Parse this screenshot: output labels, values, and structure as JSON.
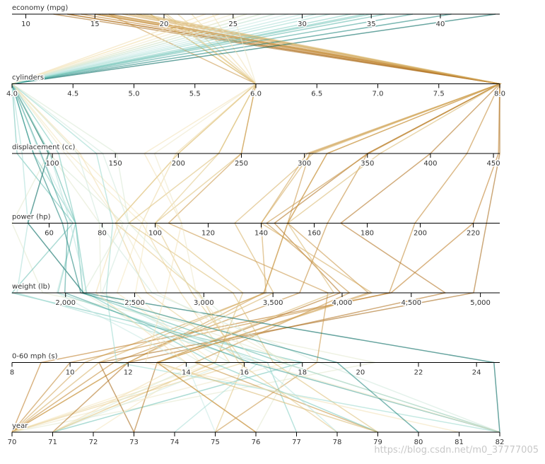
{
  "chart_data": {
    "type": "parallel",
    "colormap": [
      "#8c510a",
      "#bf812d",
      "#dfc27d",
      "#f6e8c3",
      "#c7eae5",
      "#80cdc1",
      "#35978f",
      "#01665e"
    ],
    "color_by": 0,
    "dimensions": [
      {
        "name": "economy (mpg)",
        "lim": [
          9,
          44.3
        ],
        "ticks": [
          10,
          15,
          20,
          25,
          30,
          35,
          40
        ]
      },
      {
        "name": "cylinders",
        "lim": [
          4,
          8
        ],
        "ticks": [
          {
            "value": 4,
            "label": "4.0"
          },
          4.5,
          {
            "value": 5,
            "label": "5.0"
          },
          5.5,
          {
            "value": 6,
            "label": "6.0"
          },
          6.5,
          {
            "value": 7,
            "label": "7.0"
          },
          7.5,
          {
            "value": 8,
            "label": "8.0"
          }
        ]
      },
      {
        "name": "displacement (cc)",
        "lim": [
          68,
          455
        ],
        "ticks": [
          100,
          150,
          200,
          250,
          300,
          350,
          400,
          450
        ]
      },
      {
        "name": "power (hp)",
        "lim": [
          46,
          230
        ],
        "ticks": [
          60,
          80,
          100,
          120,
          140,
          160,
          180,
          200,
          220
        ]
      },
      {
        "name": "weight (lb)",
        "lim": [
          1613,
          5140
        ],
        "ticks": [
          {
            "value": 2000,
            "label": "2,000"
          },
          {
            "value": 2500,
            "label": "2,500"
          },
          {
            "value": 3000,
            "label": "3,000"
          },
          {
            "value": 3500,
            "label": "3,500"
          },
          {
            "value": 4000,
            "label": "4,000"
          },
          {
            "value": 4500,
            "label": "4,500"
          },
          {
            "value": 5000,
            "label": "5,000"
          }
        ]
      },
      {
        "name": "0-60 mph (s)",
        "lim": [
          8,
          24.8
        ],
        "ticks": [
          8,
          10,
          12,
          14,
          16,
          18,
          20,
          22,
          24
        ]
      },
      {
        "name": "year",
        "lim": [
          70,
          82
        ],
        "ticks": [
          70,
          71,
          72,
          73,
          74,
          75,
          76,
          77,
          78,
          79,
          80,
          81,
          82
        ]
      }
    ],
    "data": [
      [
        18,
        8,
        307,
        130,
        3504,
        12,
        70
      ],
      [
        15,
        8,
        350,
        165,
        3693,
        11.5,
        70
      ],
      [
        18,
        8,
        318,
        150,
        3436,
        11,
        70
      ],
      [
        16,
        8,
        304,
        150,
        3433,
        12,
        70
      ],
      [
        17,
        8,
        302,
        140,
        3449,
        10.5,
        70
      ],
      [
        15,
        8,
        429,
        198,
        4341,
        10,
        70
      ],
      [
        14,
        8,
        454,
        220,
        4354,
        9,
        70
      ],
      [
        24,
        4,
        113,
        95,
        2372,
        15,
        70
      ],
      [
        22,
        6,
        198,
        95,
        2833,
        15.5,
        70
      ],
      [
        26,
        4,
        97,
        46,
        1835,
        20.5,
        70
      ],
      [
        25,
        4,
        110,
        87,
        2672,
        17.5,
        70
      ],
      [
        21,
        6,
        200,
        85,
        2587,
        16,
        70
      ],
      [
        27,
        4,
        97,
        88,
        2130,
        14.5,
        71
      ],
      [
        28,
        4,
        140,
        90,
        2264,
        15.5,
        71
      ],
      [
        19,
        6,
        250,
        100,
        3282,
        15,
        71
      ],
      [
        13,
        8,
        400,
        170,
        4746,
        12,
        71
      ],
      [
        12,
        8,
        455,
        225,
        4951,
        11,
        73
      ],
      [
        35,
        4,
        72,
        69,
        1613,
        18,
        71
      ],
      [
        20,
        6,
        232,
        100,
        2914,
        16,
        75
      ],
      [
        29,
        4,
        90,
        70,
        1937,
        14,
        75
      ],
      [
        16,
        6,
        250,
        105,
        3897,
        18.5,
        75
      ],
      [
        31,
        4,
        76,
        52,
        1649,
        16.5,
        74
      ],
      [
        13,
        8,
        350,
        145,
        3988,
        13,
        73
      ],
      [
        24,
        4,
        120,
        97,
        2506,
        14.5,
        72
      ],
      [
        26,
        4,
        98,
        79,
        2255,
        17.7,
        76
      ],
      [
        17.5,
        8,
        305,
        140,
        4215,
        13,
        76
      ],
      [
        33.5,
        4,
        85,
        70,
        1945,
        16.8,
        77
      ],
      [
        19,
        6,
        232,
        90,
        3211,
        17,
        79
      ],
      [
        15.5,
        8,
        351,
        142,
        4054,
        14.3,
        79
      ],
      [
        36,
        4,
        98,
        70,
        2125,
        17.3,
        82
      ],
      [
        32,
        4,
        135,
        84,
        2295,
        11.6,
        82
      ],
      [
        44,
        4,
        97,
        52,
        2130,
        24.6,
        82
      ],
      [
        27,
        4,
        151,
        90,
        2950,
        17.3,
        82
      ],
      [
        28,
        4,
        120,
        79,
        2625,
        18.6,
        82
      ],
      [
        38,
        4,
        91,
        67,
        1995,
        16.2,
        82
      ],
      [
        34.5,
        4,
        105,
        70,
        2150,
        14.9,
        79
      ],
      [
        23.5,
        6,
        173,
        110,
        2725,
        12.6,
        81
      ],
      [
        40.8,
        4,
        85,
        65,
        2110,
        19.2,
        80
      ],
      [
        20.2,
        6,
        200,
        85,
        2965,
        15.8,
        78
      ],
      [
        18.5,
        8,
        360,
        150,
        3940,
        13,
        79
      ],
      [
        30,
        4,
        98,
        68,
        2155,
        16.5,
        78
      ],
      [
        25,
        6,
        181,
        110,
        2945,
        16.4,
        82
      ],
      [
        16,
        8,
        318,
        150,
        4190,
        13,
        76
      ],
      [
        23,
        4,
        122,
        86,
        2220,
        14,
        71
      ]
    ],
    "watermark": "https://blog.csdn.net/m0_37777005"
  }
}
